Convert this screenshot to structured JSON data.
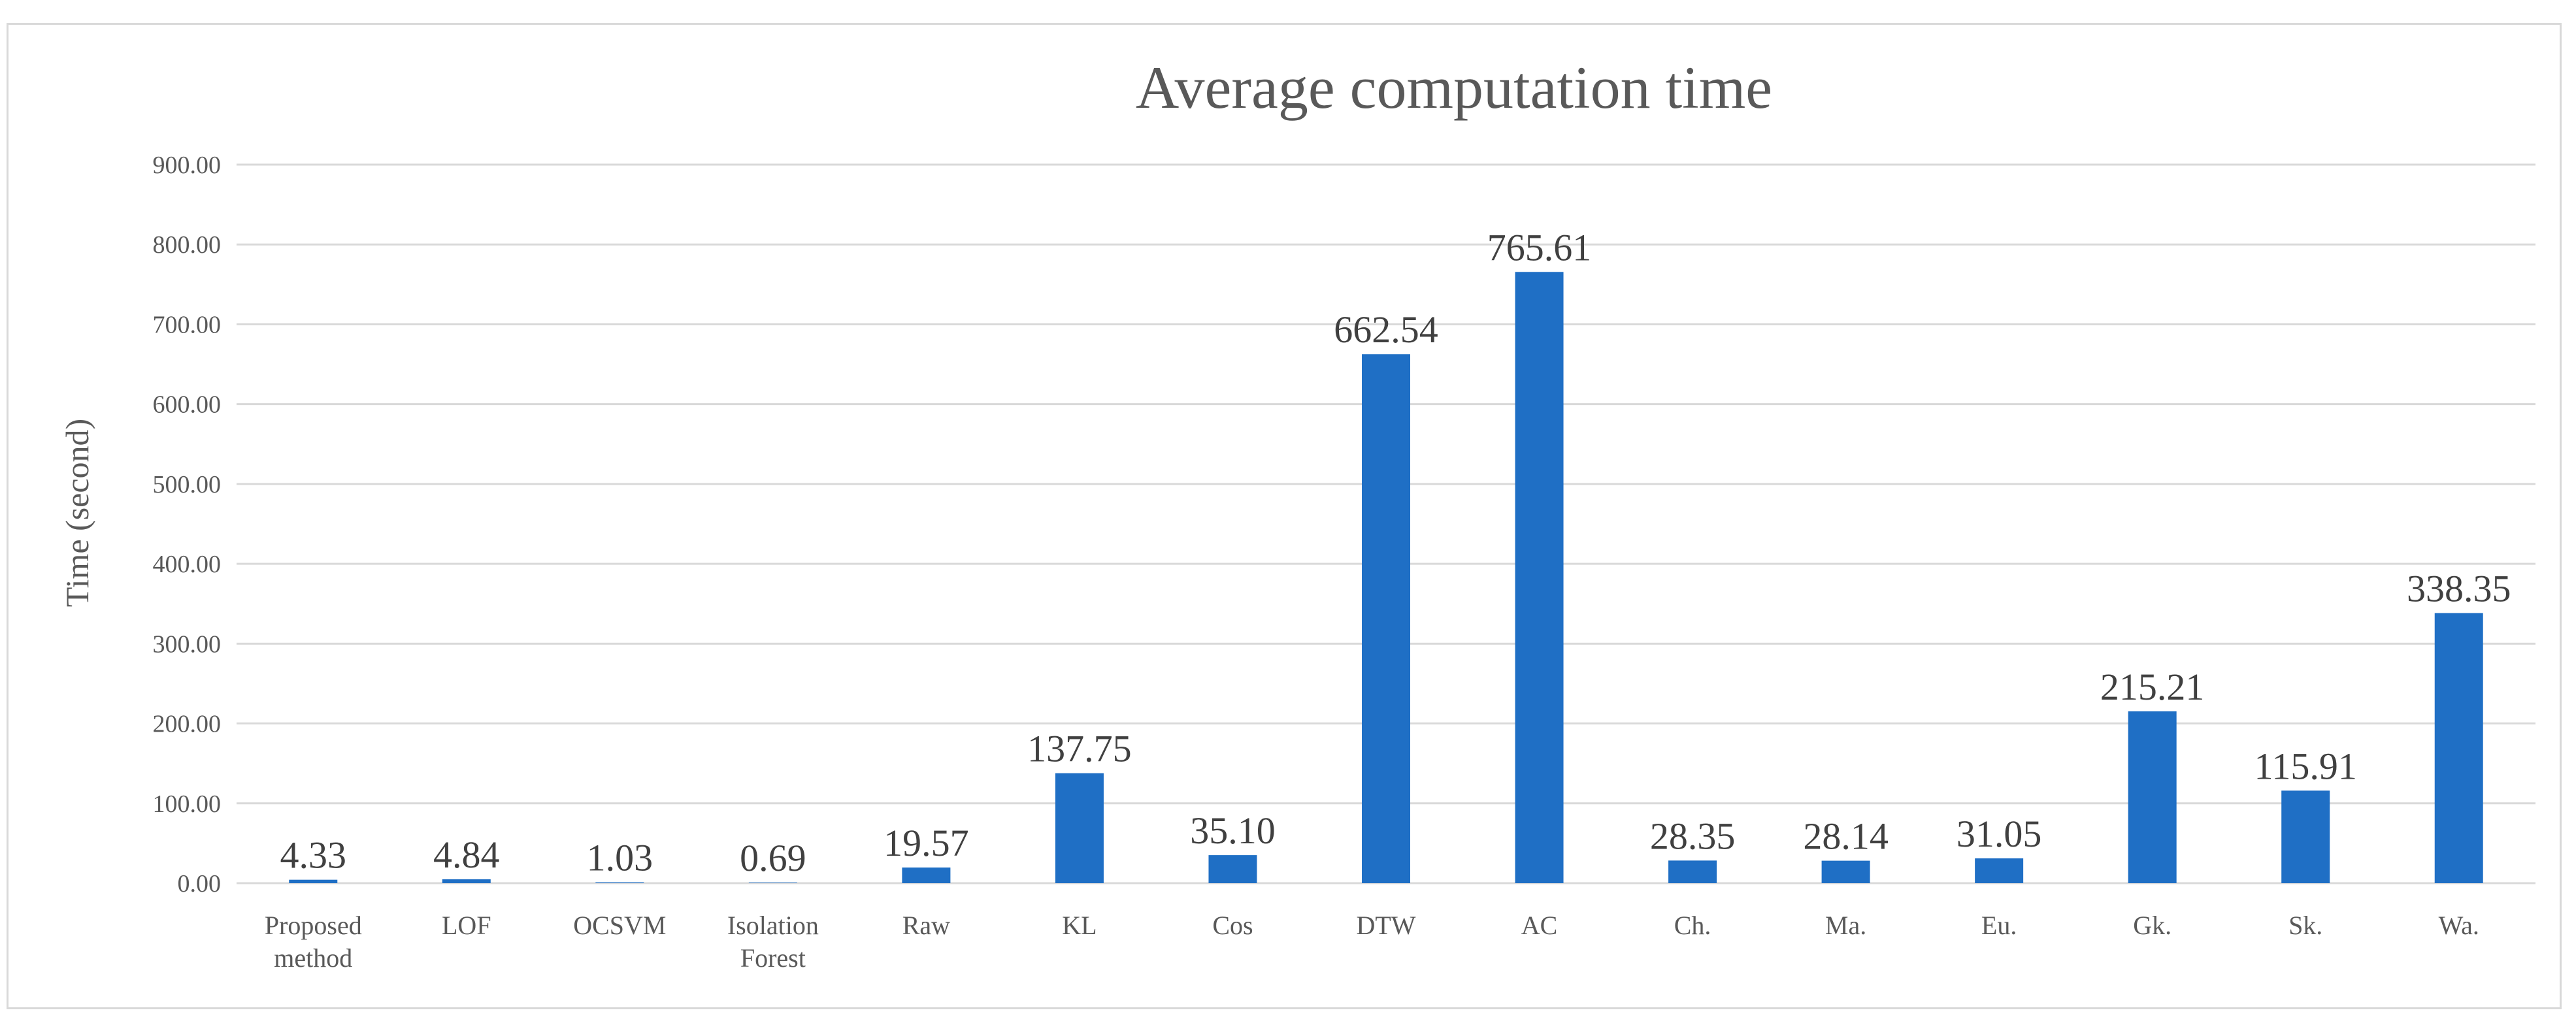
{
  "colors": {
    "bar": "#1f6fc5",
    "grid": "#d9d9d9",
    "text": "#595959",
    "label": "#404040"
  },
  "chart_data": {
    "type": "bar",
    "title": "Average computation time",
    "xlabel": "",
    "ylabel": "Time (second)",
    "ylim": [
      0,
      900
    ],
    "yticks": [
      "0.00",
      "100.00",
      "200.00",
      "300.00",
      "400.00",
      "500.00",
      "600.00",
      "700.00",
      "800.00",
      "900.00"
    ],
    "grid": true,
    "categories": [
      [
        "Proposed",
        "method"
      ],
      [
        "LOF"
      ],
      [
        "OCSVM"
      ],
      [
        "Isolation",
        "Forest"
      ],
      [
        "Raw"
      ],
      [
        "KL"
      ],
      [
        "Cos"
      ],
      [
        "DTW"
      ],
      [
        "AC"
      ],
      [
        "Ch."
      ],
      [
        "Ma."
      ],
      [
        "Eu."
      ],
      [
        "Gk."
      ],
      [
        "Sk."
      ],
      [
        "Wa."
      ]
    ],
    "values": [
      4.33,
      4.84,
      1.03,
      0.69,
      19.57,
      137.75,
      35.1,
      662.54,
      765.61,
      28.35,
      28.14,
      31.05,
      215.21,
      115.91,
      338.35
    ],
    "value_labels": [
      "4.33",
      "4.84",
      "1.03",
      "0.69",
      "19.57",
      "137.75",
      "35.10",
      "662.54",
      "765.61",
      "28.35",
      "28.14",
      "31.05",
      "215.21",
      "115.91",
      "338.35"
    ]
  }
}
